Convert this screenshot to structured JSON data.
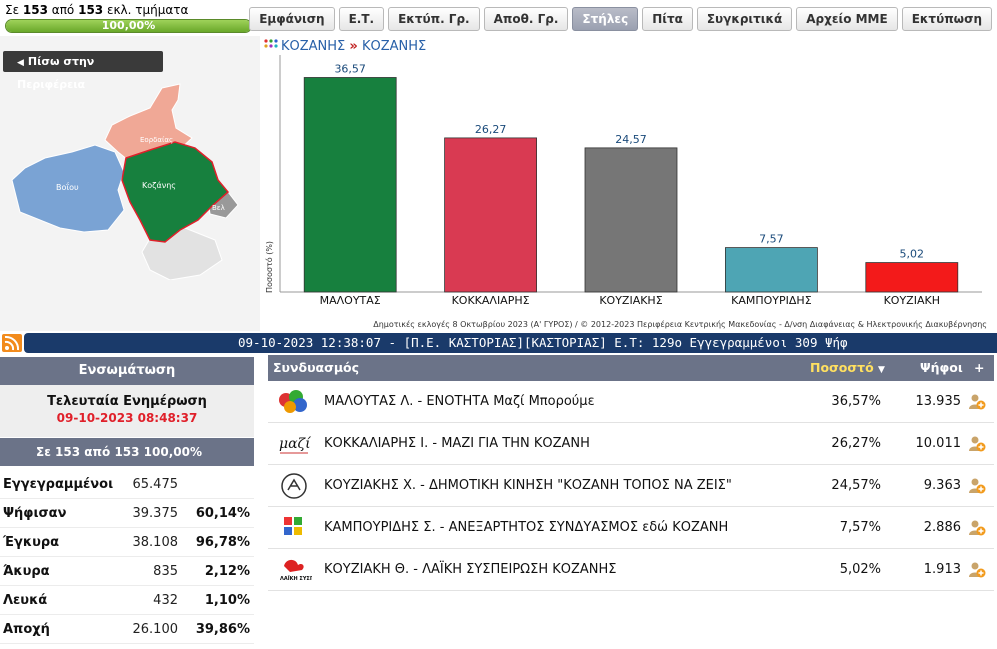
{
  "progress": {
    "prefix": "Σε",
    "counted": "153",
    "middle": "από",
    "total": "153",
    "suffix": "εκλ. τμήματα",
    "percent_label": "100,00%",
    "fraction": 1.0
  },
  "toolbar": [
    {
      "label": "Εμφάνιση",
      "active": false
    },
    {
      "label": "Ε.Τ.",
      "active": false
    },
    {
      "label": "Εκτύπ. Γρ.",
      "active": false
    },
    {
      "label": "Αποθ. Γρ.",
      "active": false
    },
    {
      "label": "Στήλες",
      "active": true
    },
    {
      "label": "Πίτα",
      "active": false
    },
    {
      "label": "Συγκριτικά",
      "active": false
    },
    {
      "label": "Αρχείο ΜΜΕ",
      "active": false
    },
    {
      "label": "Εκτύπωση",
      "active": false
    }
  ],
  "back_button": "Πίσω στην Περιφέρεια",
  "map": {
    "labels": {
      "eordaia": "Εορδαίας",
      "voio": "Βοΐου",
      "kozani": "Κοζάνης",
      "velvento": "Βελ"
    },
    "colors": {
      "kozani": "#17803e",
      "eordaia": "#f0a896",
      "voio": "#7aa3d4",
      "other": "#e2e2e2",
      "velvento": "#999999"
    }
  },
  "breadcrumb": {
    "level1": "ΚΟΖΑΝΗΣ",
    "separator": "»",
    "level2": "ΚΟΖΑΝΗΣ"
  },
  "chart_data": {
    "type": "bar",
    "categories": [
      "ΜΑΛΟΥΤΑΣ",
      "ΚΟΚΚΑΛΙΑΡΗΣ",
      "ΚΟΥΖΙΑΚΗΣ",
      "ΚΑΜΠΟΥΡΙΔΗΣ",
      "ΚΟΥΖΙΑΚΗ"
    ],
    "values": [
      36.57,
      26.27,
      24.57,
      7.57,
      5.02
    ],
    "value_labels": [
      "36,57",
      "26,27",
      "24,57",
      "7,57",
      "5,02"
    ],
    "colors": [
      "#17803e",
      "#d93a52",
      "#767676",
      "#4ea5b4",
      "#f31a1a"
    ],
    "ylabel": "Ποσοστό (%)",
    "ylim": [
      0,
      40
    ],
    "grid": false
  },
  "footer_note": "Δημοτικές εκλογές 8 Οκτωβρίου 2023 (Α' ΓΥΡΟΣ) / © 2012-2023 Περιφέρεια Κεντρικής Μακεδονίας - Δ/νση Διαφάνειας & Ηλεκτρονικής Διακυβέρνησης",
  "ticker": "09-10-2023 12:38:07 - [Π.Ε. ΚΑΣΤΟΡΙΑΣ][ΚΑΣΤΟΡΙΑΣ] Ε.Τ: 129ο Εγγεγραμμένοι 309 Ψήφ",
  "panel": {
    "title": "Ενσωμάτωση",
    "update_title": "Τελευταία Ενημέρωση",
    "update_date": "09-10-2023 08:48:37",
    "section_bar": "Σε 153 από  153   100,00%",
    "stats": [
      {
        "label": "Εγγεγραμμένοι",
        "value": "65.475",
        "pct": ""
      },
      {
        "label": "Ψήφισαν",
        "value": "39.375",
        "pct": "60,14%"
      },
      {
        "label": "Έγκυρα",
        "value": "38.108",
        "pct": "96,78%"
      },
      {
        "label": "Άκυρα",
        "value": "835",
        "pct": "2,12%"
      },
      {
        "label": "Λευκά",
        "value": "432",
        "pct": "1,10%"
      },
      {
        "label": "Αποχή",
        "value": "26.100",
        "pct": "39,86%"
      }
    ]
  },
  "results": {
    "headers": {
      "party": "Συνδυασμός",
      "pct": "Ποσοστό",
      "votes": "Ψήφοι",
      "plus": "+"
    },
    "rows": [
      {
        "name": "ΜΑΛΟΥΤΑΣ Λ. - ΕΝΟΤΗΤΑ Μαζί Μπορούμε",
        "pct": "36,57%",
        "votes": "13.935",
        "logo": "maloutas-logo"
      },
      {
        "name": "ΚΟΚΚΑΛΙΑΡΗΣ Ι. - ΜΑΖΙ ΓΙΑ ΤΗΝ ΚΟΖΑΝΗ",
        "pct": "26,27%",
        "votes": "10.011",
        "logo": "mazi-logo"
      },
      {
        "name": "ΚΟΥΖΙΑΚΗΣ Χ. - ΔΗΜΟΤΙΚΗ ΚΙΝΗΣΗ \"ΚΟΖΑΝΗ ΤΟΠΟΣ ΝΑ ΖΕΙΣ\"",
        "pct": "24,57%",
        "votes": "9.363",
        "logo": "kouziakis-logo"
      },
      {
        "name": "ΚΑΜΠΟΥΡΙΔΗΣ Σ. - ΑΝΕΞΑΡΤΗΤΟΣ ΣΥΝΔΥΑΣΜΟΣ εδώ ΚΟΖΑΝΗ",
        "pct": "7,57%",
        "votes": "2.886",
        "logo": "kampouridis-logo"
      },
      {
        "name": "ΚΟΥΖΙΑΚΗ Θ. - ΛΑΪΚΗ ΣΥΣΠΕΙΡΩΣΗ ΚΟΖΑΝΗΣ",
        "pct": "5,02%",
        "votes": "1.913",
        "logo": "laiki-logo"
      }
    ]
  }
}
